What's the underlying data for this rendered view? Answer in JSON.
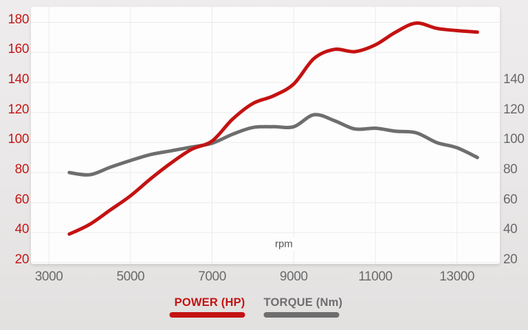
{
  "chart_data": {
    "type": "line",
    "title": "",
    "xlabel": "rpm",
    "x": [
      3500,
      4000,
      4500,
      5000,
      5500,
      6000,
      6500,
      7000,
      7500,
      8000,
      8500,
      9000,
      9500,
      10000,
      10500,
      11000,
      11500,
      12000,
      12500,
      13000,
      13500
    ],
    "series": [
      {
        "name": "POWER (HP)",
        "axis": "left",
        "color": "#c41212",
        "values": [
          39,
          45.5,
          55,
          64.5,
          76,
          86.5,
          95.5,
          101,
          115.5,
          126,
          131,
          139,
          156,
          162,
          160.5,
          165,
          173.5,
          179.5,
          176,
          174.5,
          173.5
        ]
      },
      {
        "name": "TORQUE (Nm)",
        "axis": "right",
        "color": "#6e6e6e",
        "values": [
          80,
          78.5,
          83.5,
          88,
          92,
          94.5,
          97,
          99.5,
          105.5,
          110,
          110.5,
          110.5,
          118.5,
          114.5,
          109,
          109.5,
          107.5,
          106.5,
          100,
          96.5,
          90
        ]
      }
    ],
    "x_ticks": [
      3000,
      5000,
      7000,
      9000,
      11000,
      13000
    ],
    "y_ticks_left": [
      180,
      160,
      140,
      120,
      100,
      80,
      60,
      40,
      20
    ],
    "y_ticks_right": [
      140,
      120,
      100,
      80,
      60,
      40,
      20
    ],
    "x_range": [
      2560,
      14050
    ],
    "y_range": [
      19.1,
      190.3
    ],
    "grid": true,
    "legend_position": "bottom"
  },
  "colors": {
    "power": "#c41212",
    "torque": "#6e6e6e",
    "left_tick_text": "#c41717",
    "right_tick_text": "#6a6a6a",
    "x_tick_text": "#6a6a6a",
    "grid": "#ebebeb",
    "plot_bg": "#fdfdfd",
    "x_title_text": "#555555"
  }
}
